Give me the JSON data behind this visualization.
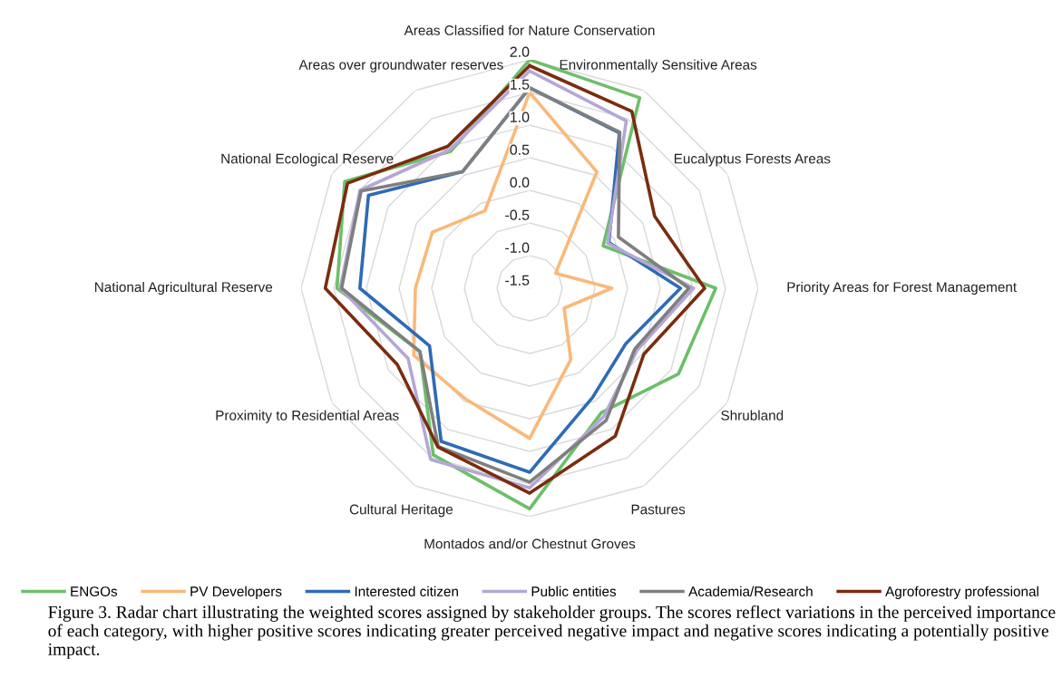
{
  "chart_data": {
    "type": "radar",
    "categories": [
      "Areas Classified for Nature Conservation",
      "Environmentally Sensitive Areas",
      "Eucalyptus Forests Areas",
      "Priority Areas for Forest Management",
      "Shrubland",
      "Pastures",
      "Montados and/or Chestnut Groves",
      "Cultural Heritage",
      "Proximity to Residential Areas",
      "National Agricultural Reserve",
      "National Ecological Reserve",
      "Areas over groundwater reserves"
    ],
    "ylim": [
      -1.5,
      2.0
    ],
    "yticks": [
      -1.5,
      {
        "value": -1,
        "label": "-1.0"
      },
      -0.5,
      {
        "value": 0,
        "label": "0.0"
      },
      0.5,
      {
        "value": 1,
        "label": "1.0"
      },
      1.5,
      {
        "value": 2,
        "label": "2.0"
      }
    ],
    "series": [
      {
        "name": "ENGOs",
        "color": "#6dbf6a",
        "values": [
          2.0,
          1.87,
          -0.2,
          1.35,
          1.13,
          0.7,
          1.88,
          1.45,
          0.44,
          1.45,
          1.77,
          0.92
        ]
      },
      {
        "name": "PV Developers",
        "color": "#f9b97a",
        "values": [
          1.5,
          0.56,
          -1.04,
          -0.24,
          -0.89,
          -0.24,
          0.8,
          0.46,
          0.55,
          0.25,
          0.22,
          -0.13
        ]
      },
      {
        "name": "Interested citizen",
        "color": "#2e6bb5",
        "values": [
          1.57,
          1.25,
          -0.1,
          0.81,
          0.2,
          0.43,
          1.32,
          1.21,
          0.27,
          1.1,
          1.35,
          0.56
        ]
      },
      {
        "name": "Public entities",
        "color": "#b4a7d6",
        "values": [
          1.83,
          1.46,
          -0.12,
          1.01,
          0.4,
          0.77,
          1.56,
          1.53,
          0.65,
          1.4,
          1.5,
          0.95
        ]
      },
      {
        "name": "Academia/Research",
        "color": "#7f7f7f",
        "values": [
          1.57,
          1.26,
          0.07,
          0.94,
          0.36,
          0.84,
          1.47,
          1.3,
          0.44,
          1.38,
          1.48,
          0.56
        ]
      },
      {
        "name": "Agroforestry professional",
        "color": "#7b2c0e",
        "values": [
          1.91,
          1.63,
          0.71,
          1.18,
          0.52,
          1.12,
          1.64,
          1.31,
          0.84,
          1.63,
          1.72,
          1.01
        ]
      }
    ],
    "grid": true,
    "legend": "bottom",
    "annotations": [
      "Figure 3. Radar chart illustrating the weighted scores assigned by stakeholder groups. The scores reflect variations in the perceived importance of each category, with higher positive scores indicating greater perceived negative impact and negative scores indicating a potentially positive impact."
    ]
  }
}
